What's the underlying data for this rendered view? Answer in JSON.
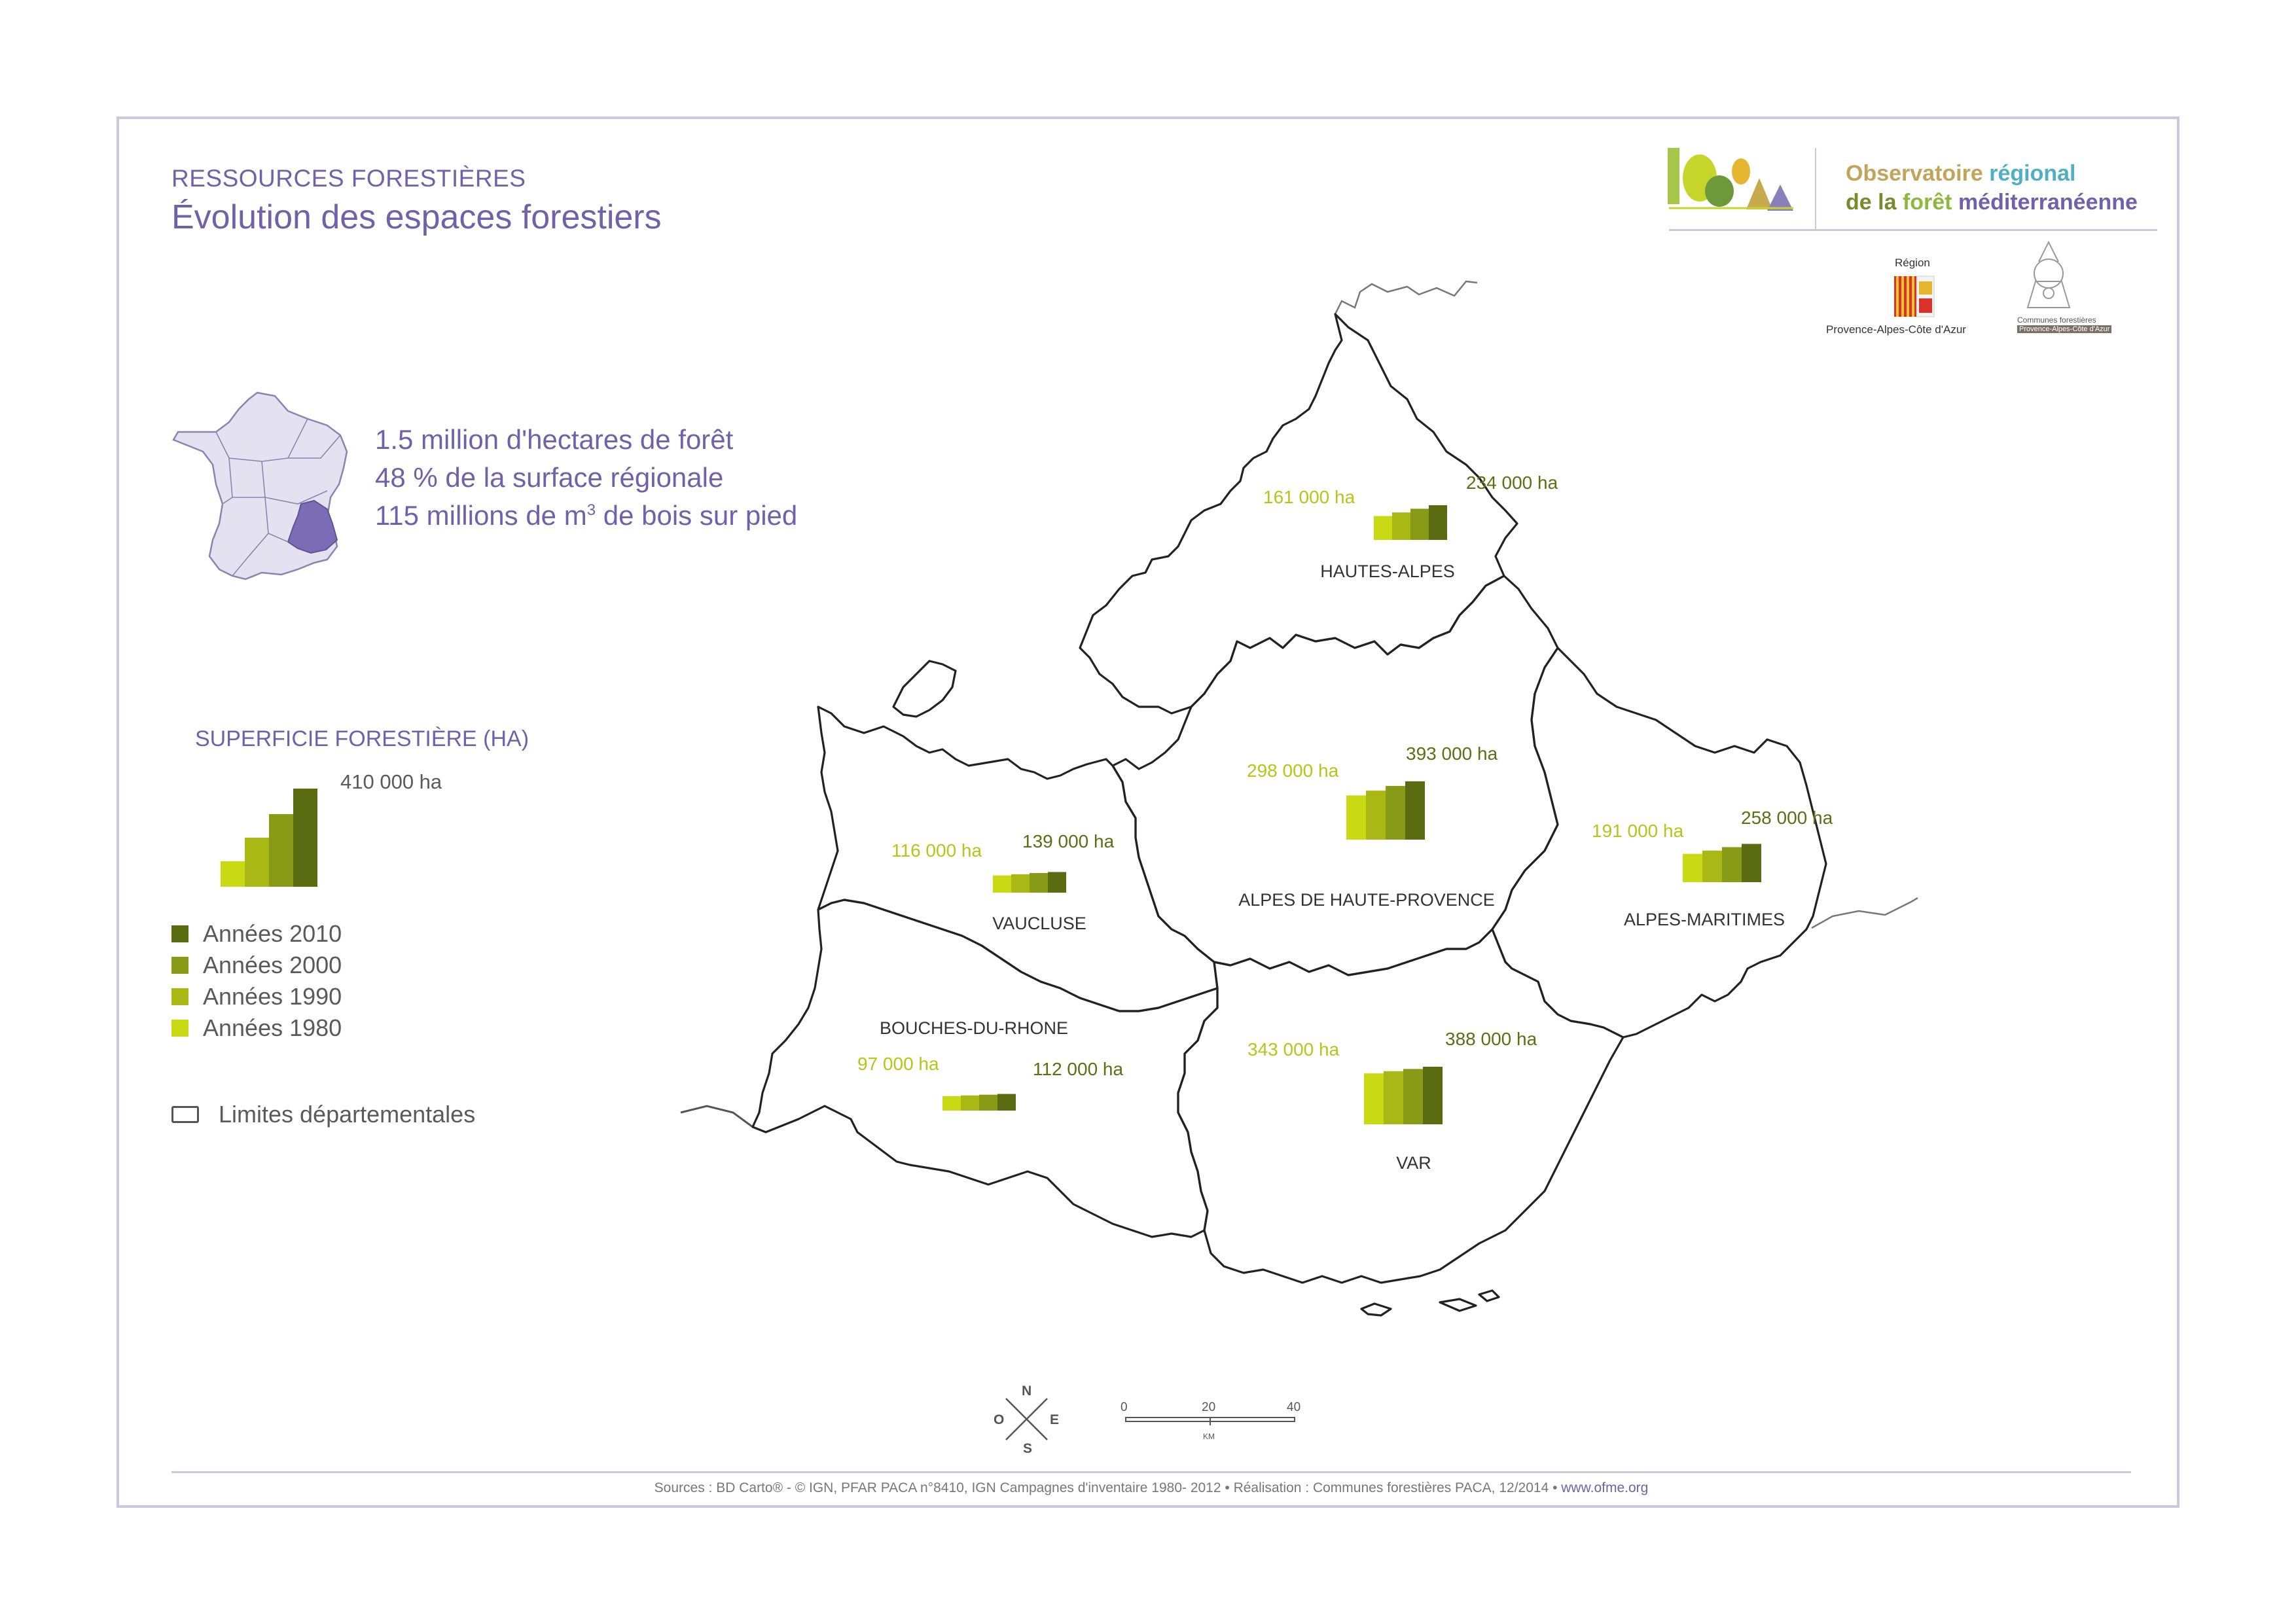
{
  "header": {
    "section_title": "RESSOURCES FORESTIÈRES",
    "page_title": "Évolution des espaces forestiers"
  },
  "stats": {
    "line1": "1.5 million d'hectares de forêt",
    "line2": "48 % de la surface régionale",
    "line3_prefix": "115 millions de m",
    "line3_sup": "3",
    "line3_suffix": " de bois sur pied"
  },
  "legend": {
    "title": "SUPERFICIE FORESTIÈRE (HA)",
    "max_label": "410 000 ha",
    "items": [
      {
        "label": "Années 2010",
        "color": "#5b6b12"
      },
      {
        "label": "Années 2000",
        "color": "#889b16"
      },
      {
        "label": "Années 1990",
        "color": "#a9b814"
      },
      {
        "label": "Années 1980",
        "color": "#c9d913"
      }
    ],
    "limits_label": "Limites départementales"
  },
  "chart_data": {
    "type": "bar",
    "series_names": [
      "Années 1980",
      "Années 1990",
      "Années 2000",
      "Années 2010"
    ],
    "legend_max": 410000,
    "departments": [
      {
        "name": "HAUTES-ALPES",
        "low_label": "161 000 ha",
        "high_label": "234 000 ha",
        "values": [
          161000,
          185000,
          210000,
          234000
        ]
      },
      {
        "name": "ALPES DE HAUTE-PROVENCE",
        "low_label": "298 000 ha",
        "high_label": "393 000 ha",
        "values": [
          298000,
          330000,
          362000,
          393000
        ]
      },
      {
        "name": "ALPES-MARITIMES",
        "low_label": "191 000 ha",
        "high_label": "258 000 ha",
        "values": [
          191000,
          213000,
          236000,
          258000
        ]
      },
      {
        "name": "VAUCLUSE",
        "low_label": "116 000 ha",
        "high_label": "139 000 ha",
        "values": [
          116000,
          124000,
          132000,
          139000
        ]
      },
      {
        "name": "BOUCHES-DU-RHONE",
        "low_label": "97 000 ha",
        "high_label": "112 000 ha",
        "values": [
          97000,
          102000,
          107000,
          112000
        ]
      },
      {
        "name": "VAR",
        "low_label": "343 000 ha",
        "high_label": "388 000 ha",
        "values": [
          343000,
          358000,
          373000,
          388000
        ]
      }
    ]
  },
  "logos": {
    "ofme_line1_a": "Observatoire ",
    "ofme_line1_b": "régional",
    "ofme_line2_a": "de la ",
    "ofme_line2_b": "forêt ",
    "ofme_line2_c": "méditerranéenne",
    "region_top": "Région",
    "region_bottom": "Provence-Alpes-Côte d'Azur",
    "cf_line1": "Communes forestières",
    "cf_line2": "Provence-Alpes-Côte d'Azur"
  },
  "compass": {
    "n": "N",
    "s": "S",
    "e": "E",
    "o": "O"
  },
  "scale": {
    "t0": "0",
    "t1": "20",
    "t2": "40",
    "unit": "KM"
  },
  "footer": {
    "text": "Sources : BD Carto® - © IGN, PFAR PACA n°8410, IGN Campagnes d'inventaire 1980- 2012 • Réalisation : Communes forestières PACA, 12/2014 • ",
    "link": "www.ofme.org"
  }
}
